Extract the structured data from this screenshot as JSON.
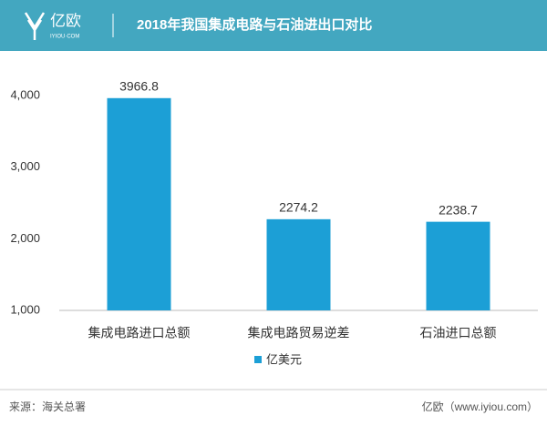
{
  "header": {
    "logo": "亿欧",
    "logo_sub": "IYIOU·COM"
  },
  "chart_data": {
    "type": "bar",
    "title": "2018年我国集成电路与石油进出口对比",
    "categories": [
      "集成电路进口总额",
      "集成电路贸易逆差",
      "石油进口总额"
    ],
    "series": [
      {
        "name": "亿美元",
        "color": "#1c9fd6",
        "values": [
          3966.8,
          2274.2,
          2238.7
        ]
      }
    ],
    "ylim": [
      1000,
      4300
    ],
    "yticks": [
      {
        "value": 1000,
        "label": "1,000"
      },
      {
        "value": 2000,
        "label": "2,000"
      },
      {
        "value": 3000,
        "label": "3,000"
      },
      {
        "value": 4000,
        "label": "4,000"
      }
    ],
    "grid": false,
    "legend": "bottom"
  },
  "footer": {
    "source": "来源：海关总署",
    "brand": "亿欧（www.iyiou.com）"
  }
}
